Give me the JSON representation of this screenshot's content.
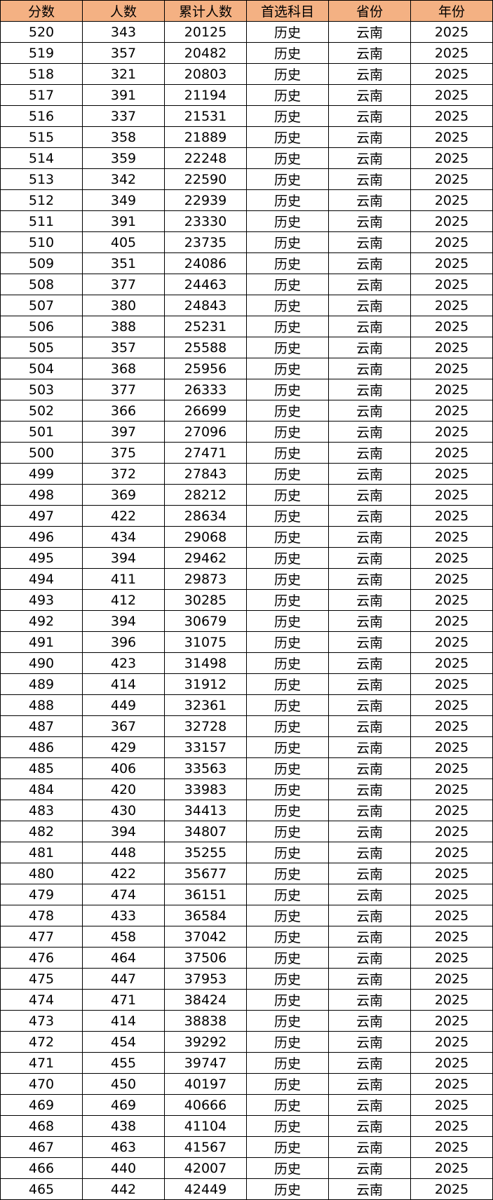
{
  "colors": {
    "header_bg": "#F4B183"
  },
  "table": {
    "headers": [
      "分数",
      "人数",
      "累计人数",
      "首选科目",
      "省份",
      "年份"
    ],
    "rows": [
      [
        "520",
        "343",
        "20125",
        "历史",
        "云南",
        "2025"
      ],
      [
        "519",
        "357",
        "20482",
        "历史",
        "云南",
        "2025"
      ],
      [
        "518",
        "321",
        "20803",
        "历史",
        "云南",
        "2025"
      ],
      [
        "517",
        "391",
        "21194",
        "历史",
        "云南",
        "2025"
      ],
      [
        "516",
        "337",
        "21531",
        "历史",
        "云南",
        "2025"
      ],
      [
        "515",
        "358",
        "21889",
        "历史",
        "云南",
        "2025"
      ],
      [
        "514",
        "359",
        "22248",
        "历史",
        "云南",
        "2025"
      ],
      [
        "513",
        "342",
        "22590",
        "历史",
        "云南",
        "2025"
      ],
      [
        "512",
        "349",
        "22939",
        "历史",
        "云南",
        "2025"
      ],
      [
        "511",
        "391",
        "23330",
        "历史",
        "云南",
        "2025"
      ],
      [
        "510",
        "405",
        "23735",
        "历史",
        "云南",
        "2025"
      ],
      [
        "509",
        "351",
        "24086",
        "历史",
        "云南",
        "2025"
      ],
      [
        "508",
        "377",
        "24463",
        "历史",
        "云南",
        "2025"
      ],
      [
        "507",
        "380",
        "24843",
        "历史",
        "云南",
        "2025"
      ],
      [
        "506",
        "388",
        "25231",
        "历史",
        "云南",
        "2025"
      ],
      [
        "505",
        "357",
        "25588",
        "历史",
        "云南",
        "2025"
      ],
      [
        "504",
        "368",
        "25956",
        "历史",
        "云南",
        "2025"
      ],
      [
        "503",
        "377",
        "26333",
        "历史",
        "云南",
        "2025"
      ],
      [
        "502",
        "366",
        "26699",
        "历史",
        "云南",
        "2025"
      ],
      [
        "501",
        "397",
        "27096",
        "历史",
        "云南",
        "2025"
      ],
      [
        "500",
        "375",
        "27471",
        "历史",
        "云南",
        "2025"
      ],
      [
        "499",
        "372",
        "27843",
        "历史",
        "云南",
        "2025"
      ],
      [
        "498",
        "369",
        "28212",
        "历史",
        "云南",
        "2025"
      ],
      [
        "497",
        "422",
        "28634",
        "历史",
        "云南",
        "2025"
      ],
      [
        "496",
        "434",
        "29068",
        "历史",
        "云南",
        "2025"
      ],
      [
        "495",
        "394",
        "29462",
        "历史",
        "云南",
        "2025"
      ],
      [
        "494",
        "411",
        "29873",
        "历史",
        "云南",
        "2025"
      ],
      [
        "493",
        "412",
        "30285",
        "历史",
        "云南",
        "2025"
      ],
      [
        "492",
        "394",
        "30679",
        "历史",
        "云南",
        "2025"
      ],
      [
        "491",
        "396",
        "31075",
        "历史",
        "云南",
        "2025"
      ],
      [
        "490",
        "423",
        "31498",
        "历史",
        "云南",
        "2025"
      ],
      [
        "489",
        "414",
        "31912",
        "历史",
        "云南",
        "2025"
      ],
      [
        "488",
        "449",
        "32361",
        "历史",
        "云南",
        "2025"
      ],
      [
        "487",
        "367",
        "32728",
        "历史",
        "云南",
        "2025"
      ],
      [
        "486",
        "429",
        "33157",
        "历史",
        "云南",
        "2025"
      ],
      [
        "485",
        "406",
        "33563",
        "历史",
        "云南",
        "2025"
      ],
      [
        "484",
        "420",
        "33983",
        "历史",
        "云南",
        "2025"
      ],
      [
        "483",
        "430",
        "34413",
        "历史",
        "云南",
        "2025"
      ],
      [
        "482",
        "394",
        "34807",
        "历史",
        "云南",
        "2025"
      ],
      [
        "481",
        "448",
        "35255",
        "历史",
        "云南",
        "2025"
      ],
      [
        "480",
        "422",
        "35677",
        "历史",
        "云南",
        "2025"
      ],
      [
        "479",
        "474",
        "36151",
        "历史",
        "云南",
        "2025"
      ],
      [
        "478",
        "433",
        "36584",
        "历史",
        "云南",
        "2025"
      ],
      [
        "477",
        "458",
        "37042",
        "历史",
        "云南",
        "2025"
      ],
      [
        "476",
        "464",
        "37506",
        "历史",
        "云南",
        "2025"
      ],
      [
        "475",
        "447",
        "37953",
        "历史",
        "云南",
        "2025"
      ],
      [
        "474",
        "471",
        "38424",
        "历史",
        "云南",
        "2025"
      ],
      [
        "473",
        "414",
        "38838",
        "历史",
        "云南",
        "2025"
      ],
      [
        "472",
        "454",
        "39292",
        "历史",
        "云南",
        "2025"
      ],
      [
        "471",
        "455",
        "39747",
        "历史",
        "云南",
        "2025"
      ],
      [
        "470",
        "450",
        "40197",
        "历史",
        "云南",
        "2025"
      ],
      [
        "469",
        "469",
        "40666",
        "历史",
        "云南",
        "2025"
      ],
      [
        "468",
        "438",
        "41104",
        "历史",
        "云南",
        "2025"
      ],
      [
        "467",
        "463",
        "41567",
        "历史",
        "云南",
        "2025"
      ],
      [
        "466",
        "440",
        "42007",
        "历史",
        "云南",
        "2025"
      ],
      [
        "465",
        "442",
        "42449",
        "历史",
        "云南",
        "2025"
      ]
    ]
  }
}
